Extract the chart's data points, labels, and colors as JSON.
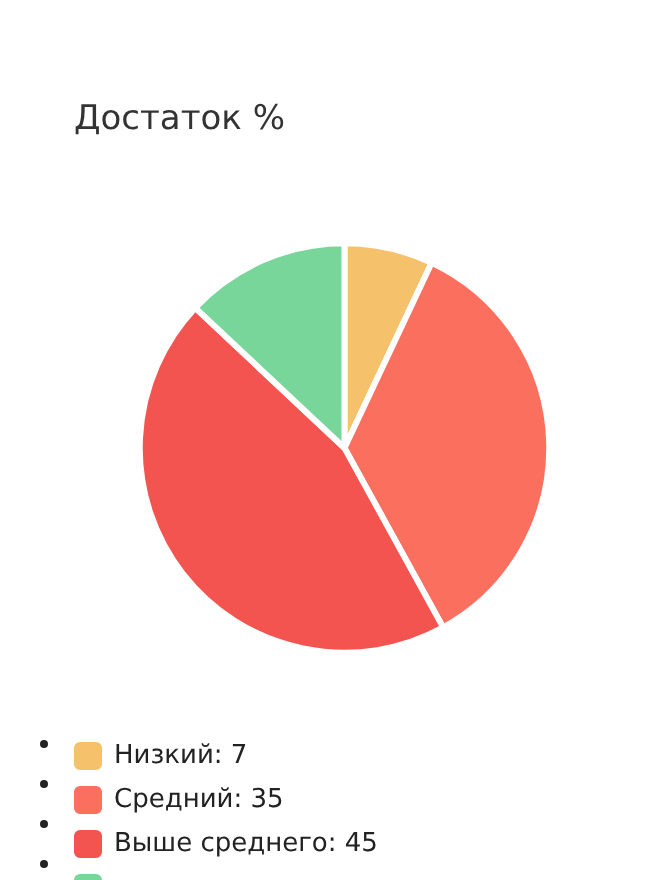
{
  "chart_data": {
    "type": "pie",
    "title": "Достаток %",
    "categories": [
      "Низкий: 7",
      "Средний: 35",
      "Выше среднего: 45",
      null
    ],
    "values": [
      7,
      35,
      45,
      13
    ],
    "colors": [
      "#f5c26b",
      "#fb6f5f",
      "#f4544f",
      "#79d69a"
    ],
    "legend": "bottom"
  }
}
